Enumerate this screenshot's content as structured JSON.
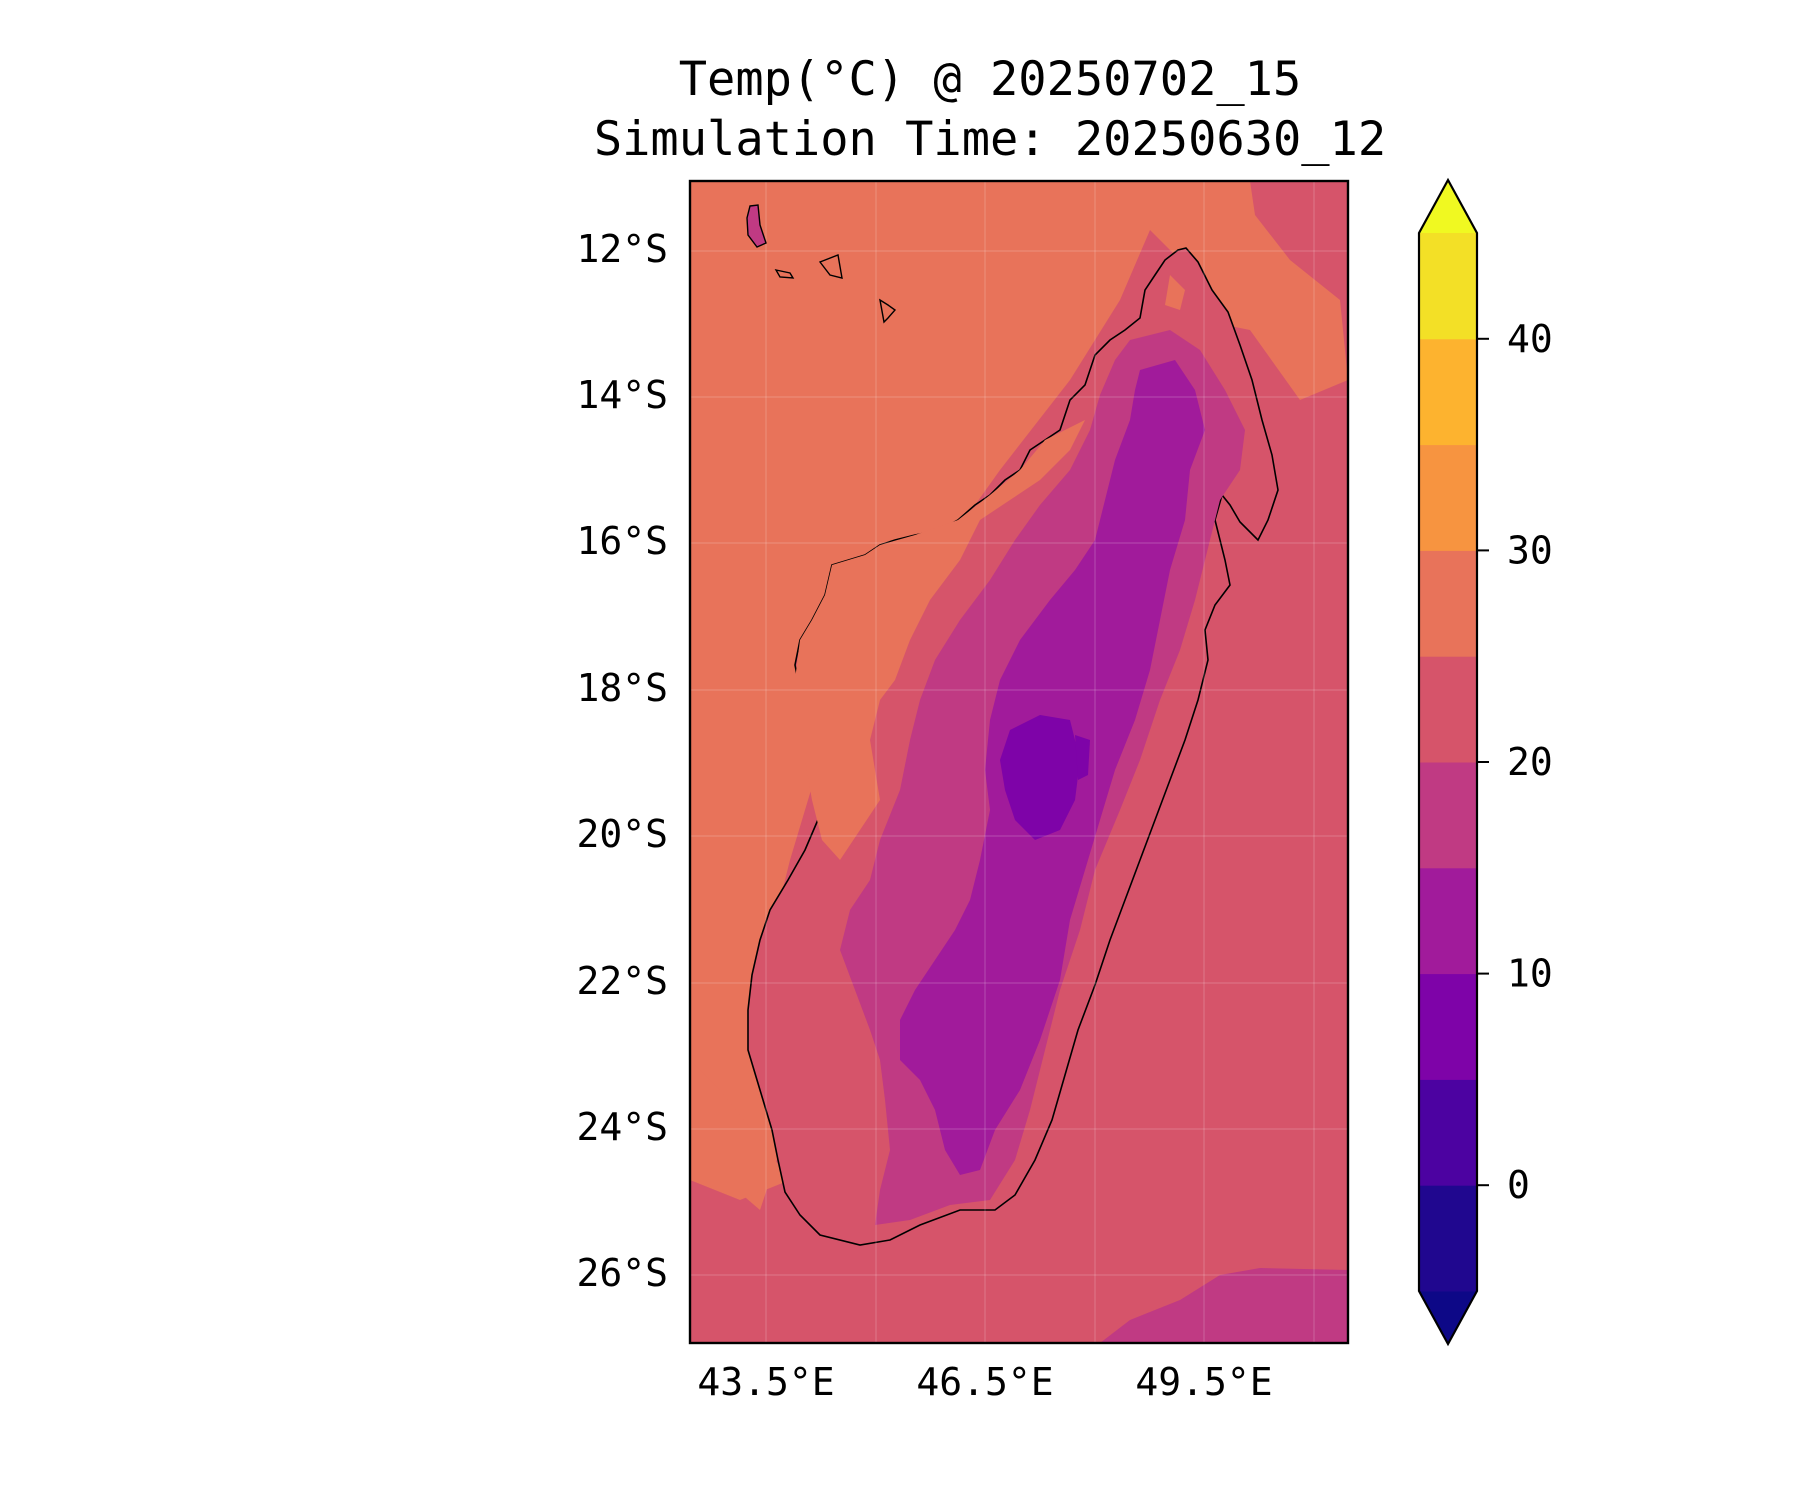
{
  "title_line1": "Temp(°C) @ 20250702_15",
  "title_line2": "Simulation Time: 20250630_12",
  "map": {
    "region": "Madagascar",
    "lon_range": [
      42.5,
      51.5
    ],
    "lat_range": [
      -27,
      -11
    ],
    "lat_ticks": [
      "12°S",
      "14°S",
      "16°S",
      "18°S",
      "20°S",
      "22°S",
      "24°S",
      "26°S"
    ],
    "lon_ticks": [
      "43.5°E",
      "46.5°E",
      "49.5°E"
    ],
    "grid": true,
    "ocean_color": "#d6546a",
    "land_warm_color": "#e8735a"
  },
  "colorbar": {
    "levels": [
      -5,
      0,
      5,
      10,
      15,
      20,
      25,
      30,
      35,
      40,
      45
    ],
    "tick_labels": [
      "0",
      "10",
      "20",
      "30",
      "40"
    ],
    "tick_values": [
      0,
      10,
      20,
      30,
      40
    ],
    "colors": [
      "#20078f",
      "#4c02a1",
      "#7e03a8",
      "#a11b9b",
      "#c03a83",
      "#d6546a",
      "#e8735a",
      "#f79440",
      "#fdb32f",
      "#f3e026"
    ],
    "under_color": "#0d0887",
    "over_color": "#f0f921",
    "extend": "both"
  }
}
